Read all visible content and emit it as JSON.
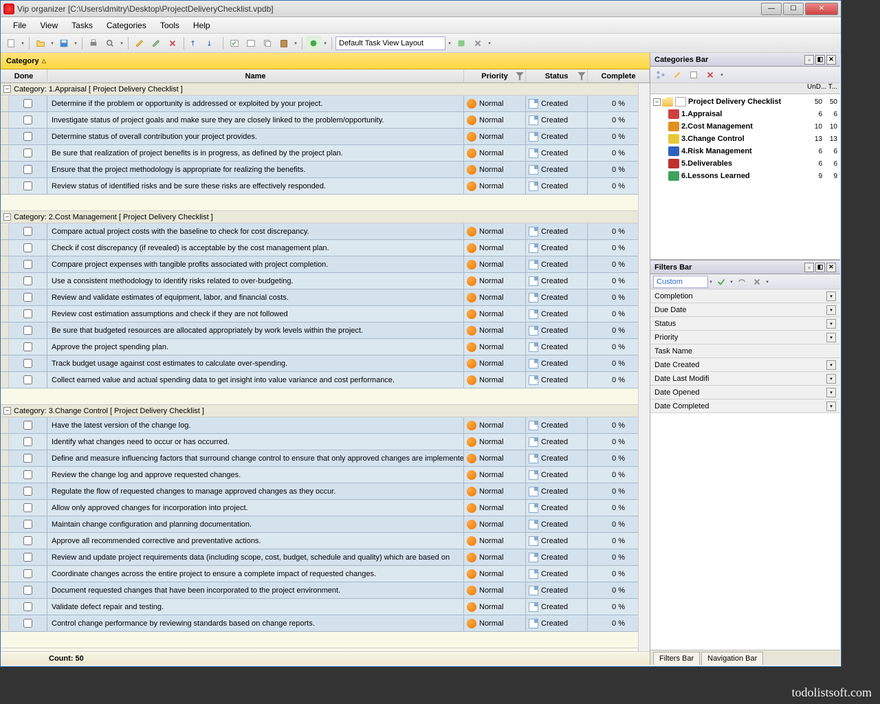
{
  "window": {
    "title": "Vip organizer [C:\\Users\\dmitry\\Desktop\\ProjectDeliveryChecklist.vpdb]"
  },
  "menubar": [
    "File",
    "View",
    "Tasks",
    "Categories",
    "Tools",
    "Help"
  ],
  "toolbar": {
    "layout_label": "Default Task View Layout"
  },
  "category_bar": "Category",
  "grid": {
    "headers": {
      "done": "Done",
      "name": "Name",
      "priority": "Priority",
      "status": "Status",
      "complete": "Complete"
    },
    "groups": [
      {
        "title": "Category: 1.Appraisal    [ Project Delivery Checklist ]",
        "tasks": [
          {
            "name": "Determine if the problem or opportunity is addressed or exploited by your project.",
            "priority": "Normal",
            "status": "Created",
            "complete": "0 %"
          },
          {
            "name": "Investigate status of project goals and make sure they are closely linked to the problem/opportunity.",
            "priority": "Normal",
            "status": "Created",
            "complete": "0 %"
          },
          {
            "name": "Determine status of overall contribution your project provides.",
            "priority": "Normal",
            "status": "Created",
            "complete": "0 %"
          },
          {
            "name": "Be sure that realization of project benefits is in progress, as defined by the project plan.",
            "priority": "Normal",
            "status": "Created",
            "complete": "0 %"
          },
          {
            "name": "Ensure that the project methodology is appropriate for realizing the benefits.",
            "priority": "Normal",
            "status": "Created",
            "complete": "0 %"
          },
          {
            "name": "Review status of identified risks and be sure these risks are effectively responded.",
            "priority": "Normal",
            "status": "Created",
            "complete": "0 %"
          }
        ]
      },
      {
        "title": "Category: 2.Cost Management    [ Project Delivery Checklist ]",
        "tasks": [
          {
            "name": "Compare actual project costs with the baseline to check for cost discrepancy.",
            "priority": "Normal",
            "status": "Created",
            "complete": "0 %"
          },
          {
            "name": "Check if cost discrepancy (if revealed) is acceptable by the cost management plan.",
            "priority": "Normal",
            "status": "Created",
            "complete": "0 %"
          },
          {
            "name": "Compare project expenses with tangible profits associated with project completion.",
            "priority": "Normal",
            "status": "Created",
            "complete": "0 %"
          },
          {
            "name": "Use a consistent methodology to identify risks related to over-budgeting.",
            "priority": "Normal",
            "status": "Created",
            "complete": "0 %"
          },
          {
            "name": "Review and validate estimates of equipment, labor, and financial costs.",
            "priority": "Normal",
            "status": "Created",
            "complete": "0 %"
          },
          {
            "name": "Review cost estimation assumptions and check if they are not followed",
            "priority": "Normal",
            "status": "Created",
            "complete": "0 %"
          },
          {
            "name": "Be sure that budgeted resources are allocated appropriately by work levels within the project.",
            "priority": "Normal",
            "status": "Created",
            "complete": "0 %"
          },
          {
            "name": "Approve the project spending plan.",
            "priority": "Normal",
            "status": "Created",
            "complete": "0 %"
          },
          {
            "name": "Track budget usage against cost estimates to calculate over-spending.",
            "priority": "Normal",
            "status": "Created",
            "complete": "0 %"
          },
          {
            "name": "Collect earned value and actual spending data to get insight into value variance and cost performance.",
            "priority": "Normal",
            "status": "Created",
            "complete": "0 %"
          }
        ]
      },
      {
        "title": "Category: 3.Change Control    [ Project Delivery Checklist ]",
        "tasks": [
          {
            "name": "Have the latest version of the change log.",
            "priority": "Normal",
            "status": "Created",
            "complete": "0 %"
          },
          {
            "name": "Identify what changes need to occur or has occurred.",
            "priority": "Normal",
            "status": "Created",
            "complete": "0 %"
          },
          {
            "name": "Define and measure influencing factors that surround change control to ensure that only approved changes are implemented.",
            "priority": "Normal",
            "status": "Created",
            "complete": "0 %"
          },
          {
            "name": "Review the change log and approve requested changes.",
            "priority": "Normal",
            "status": "Created",
            "complete": "0 %"
          },
          {
            "name": "Regulate the flow of requested changes to manage approved changes as they occur.",
            "priority": "Normal",
            "status": "Created",
            "complete": "0 %"
          },
          {
            "name": "Allow only approved changes for incorporation into project.",
            "priority": "Normal",
            "status": "Created",
            "complete": "0 %"
          },
          {
            "name": "Maintain change configuration and planning documentation.",
            "priority": "Normal",
            "status": "Created",
            "complete": "0 %"
          },
          {
            "name": "Approve all recommended corrective and preventative actions.",
            "priority": "Normal",
            "status": "Created",
            "complete": "0 %"
          },
          {
            "name": "Review and update project requirements data (including scope, cost, budget, schedule and quality) which are based on",
            "priority": "Normal",
            "status": "Created",
            "complete": "0 %"
          },
          {
            "name": "Coordinate changes across the entire project to ensure a complete impact of requested changes.",
            "priority": "Normal",
            "status": "Created",
            "complete": "0 %"
          },
          {
            "name": "Document requested changes that have been incorporated to the project environment.",
            "priority": "Normal",
            "status": "Created",
            "complete": "0 %"
          },
          {
            "name": "Validate defect repair and testing.",
            "priority": "Normal",
            "status": "Created",
            "complete": "0 %"
          },
          {
            "name": "Control change performance by reviewing standards based on change reports.",
            "priority": "Normal",
            "status": "Created",
            "complete": "0 %"
          }
        ]
      }
    ],
    "footer_count": "Count:  50"
  },
  "categories_panel": {
    "title": "Categories Bar",
    "header_cols": [
      "UnD...",
      "T..."
    ],
    "root": {
      "label": "Project Delivery Checklist",
      "c1": "50",
      "c2": "50"
    },
    "items": [
      {
        "label": "1.Appraisal",
        "c1": "6",
        "c2": "6",
        "color": "#d04040"
      },
      {
        "label": "2.Cost Management",
        "c1": "10",
        "c2": "10",
        "color": "#e09020"
      },
      {
        "label": "3.Change Control",
        "c1": "13",
        "c2": "13",
        "color": "#e8c838"
      },
      {
        "label": "4.Risk Management",
        "c1": "6",
        "c2": "6",
        "color": "#3060c0"
      },
      {
        "label": "5.Deliverables",
        "c1": "6",
        "c2": "6",
        "color": "#c03030"
      },
      {
        "label": "6.Lessons Learned",
        "c1": "9",
        "c2": "9",
        "color": "#40a060"
      }
    ]
  },
  "filters_panel": {
    "title": "Filters Bar",
    "custom": "Custom",
    "rows": [
      "Completion",
      "Due Date",
      "Status",
      "Priority",
      "Task Name",
      "Date Created",
      "Date Last Modifi",
      "Date Opened",
      "Date Completed"
    ]
  },
  "tabs": [
    "Filters Bar",
    "Navigation Bar"
  ],
  "watermark": "todolistsoft.com"
}
